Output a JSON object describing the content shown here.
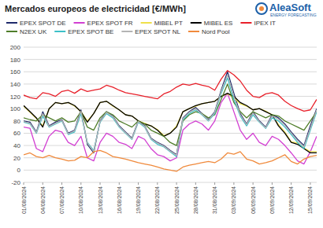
{
  "chart_data": {
    "type": "line",
    "title": "Mercados europeos de electricidad [€/MWh]",
    "annotations": [
      "AleaSoft",
      "ENERGY FORECASTING"
    ],
    "categories": [
      "01/08/2024",
      null,
      null,
      "04/08/2024",
      null,
      null,
      "07/08/2024",
      null,
      null,
      "10/08/2024",
      null,
      null,
      "13/08/2024",
      null,
      null,
      "16/08/2024",
      null,
      null,
      "19/08/2024",
      null,
      null,
      "22/08/2024",
      null,
      null,
      "25/08/2024",
      null,
      null,
      "28/08/2024",
      null,
      null,
      "31/08/2024",
      null,
      null,
      "03/09/2024",
      null,
      null,
      "06/09/2024",
      null,
      null,
      "09/09/2024",
      null,
      null,
      "12/09/2024",
      null,
      null,
      "15/09/2024",
      null
    ],
    "series": [
      {
        "name": "EPEX SPOT DE",
        "color": "#1f2a6b",
        "values": [
          80,
          78,
          62,
          95,
          72,
          78,
          82,
          60,
          65,
          98,
          42,
          28,
          80,
          95,
          88,
          72,
          62,
          52,
          80,
          72,
          52,
          45,
          40,
          32,
          25,
          85,
          95,
          102,
          92,
          82,
          95,
          130,
          160,
          125,
          92,
          75,
          95,
          80,
          70,
          90,
          85,
          75,
          62,
          50,
          40,
          72,
          100
        ]
      },
      {
        "name": "EPEX SPOT FR",
        "color": "#d23fd2",
        "values": [
          70,
          68,
          35,
          30,
          55,
          65,
          62,
          45,
          40,
          55,
          20,
          15,
          45,
          60,
          55,
          45,
          42,
          35,
          55,
          50,
          35,
          25,
          22,
          15,
          20,
          65,
          75,
          80,
          75,
          65,
          80,
          110,
          125,
          95,
          65,
          50,
          60,
          45,
          40,
          55,
          50,
          40,
          28,
          15,
          10,
          30,
          55
        ]
      },
      {
        "name": "MIBEL PT",
        "color": "#efe04a",
        "values": [
          104,
          94,
          84,
          72,
          100,
          110,
          108,
          110,
          104,
          95,
          80,
          92,
          110,
          112,
          104,
          98,
          90,
          88,
          80,
          76,
          72,
          66,
          56,
          60,
          72,
          95,
          100,
          104,
          108,
          110,
          112,
          120,
          124,
          118,
          108,
          104,
          98,
          100,
          96,
          90,
          74,
          62,
          46,
          44,
          36,
          30,
          30
        ]
      },
      {
        "name": "MIBEL ES",
        "color": "#000000",
        "values": [
          105,
          95,
          85,
          70,
          100,
          110,
          108,
          110,
          105,
          95,
          78,
          92,
          110,
          112,
          105,
          98,
          90,
          88,
          80,
          75,
          72,
          65,
          55,
          60,
          70,
          95,
          100,
          105,
          108,
          110,
          112,
          120,
          125,
          120,
          110,
          105,
          98,
          100,
          95,
          90,
          72,
          60,
          45,
          42,
          35,
          28,
          28
        ]
      },
      {
        "name": "IPEX IT",
        "color": "#e8202a",
        "values": [
          122,
          118,
          116,
          126,
          124,
          120,
          128,
          130,
          125,
          132,
          128,
          130,
          132,
          138,
          135,
          130,
          126,
          124,
          122,
          120,
          118,
          116,
          124,
          128,
          135,
          140,
          138,
          141,
          138,
          136,
          130,
          148,
          162,
          155,
          145,
          130,
          120,
          118,
          124,
          126,
          122,
          112,
          105,
          100,
          96,
          98,
          115
        ]
      },
      {
        "name": "N2EX UK",
        "color": "#4f7d2a",
        "values": [
          85,
          82,
          80,
          90,
          85,
          80,
          85,
          78,
          80,
          95,
          70,
          65,
          85,
          95,
          90,
          80,
          75,
          70,
          80,
          75,
          65,
          60,
          55,
          45,
          40,
          80,
          90,
          95,
          92,
          85,
          90,
          115,
          140,
          110,
          95,
          85,
          95,
          90,
          85,
          90,
          88,
          80,
          75,
          70,
          65,
          80,
          95
        ]
      },
      {
        "name": "EPEX SPOT BE",
        "color": "#3cc0c8",
        "values": [
          78,
          75,
          60,
          88,
          70,
          75,
          80,
          58,
          62,
          92,
          45,
          32,
          78,
          92,
          85,
          70,
          60,
          50,
          78,
          70,
          50,
          42,
          38,
          30,
          22,
          82,
          92,
          98,
          90,
          80,
          92,
          125,
          150,
          115,
          88,
          72,
          90,
          78,
          68,
          85,
          80,
          70,
          58,
          45,
          35,
          65,
          95
        ]
      },
      {
        "name": "EPEX SPOT NL",
        "color": "#b4b4b4",
        "values": [
          79,
          76,
          61,
          92,
          71,
          76,
          81,
          59,
          64,
          96,
          44,
          30,
          79,
          94,
          87,
          71,
          61,
          51,
          79,
          71,
          51,
          44,
          39,
          31,
          24,
          84,
          94,
          100,
          91,
          81,
          94,
          128,
          155,
          120,
          90,
          74,
          93,
          79,
          69,
          88,
          83,
          73,
          60,
          48,
          38,
          68,
          98
        ]
      },
      {
        "name": "Nord Pool",
        "color": "#f08a3c",
        "values": [
          25,
          28,
          22,
          20,
          24,
          20,
          18,
          15,
          16,
          22,
          20,
          30,
          32,
          28,
          22,
          20,
          18,
          15,
          12,
          10,
          8,
          5,
          2,
          0,
          -2,
          5,
          8,
          10,
          12,
          14,
          12,
          18,
          28,
          26,
          30,
          18,
          15,
          10,
          12,
          15,
          20,
          25,
          14,
          10,
          18,
          22,
          24
        ]
      }
    ],
    "ylim": [
      -20,
      200
    ],
    "yticks": [
      -20,
      0,
      20,
      40,
      60,
      80,
      100,
      120,
      140,
      160,
      180,
      200
    ],
    "grid": true,
    "legend": "top"
  }
}
